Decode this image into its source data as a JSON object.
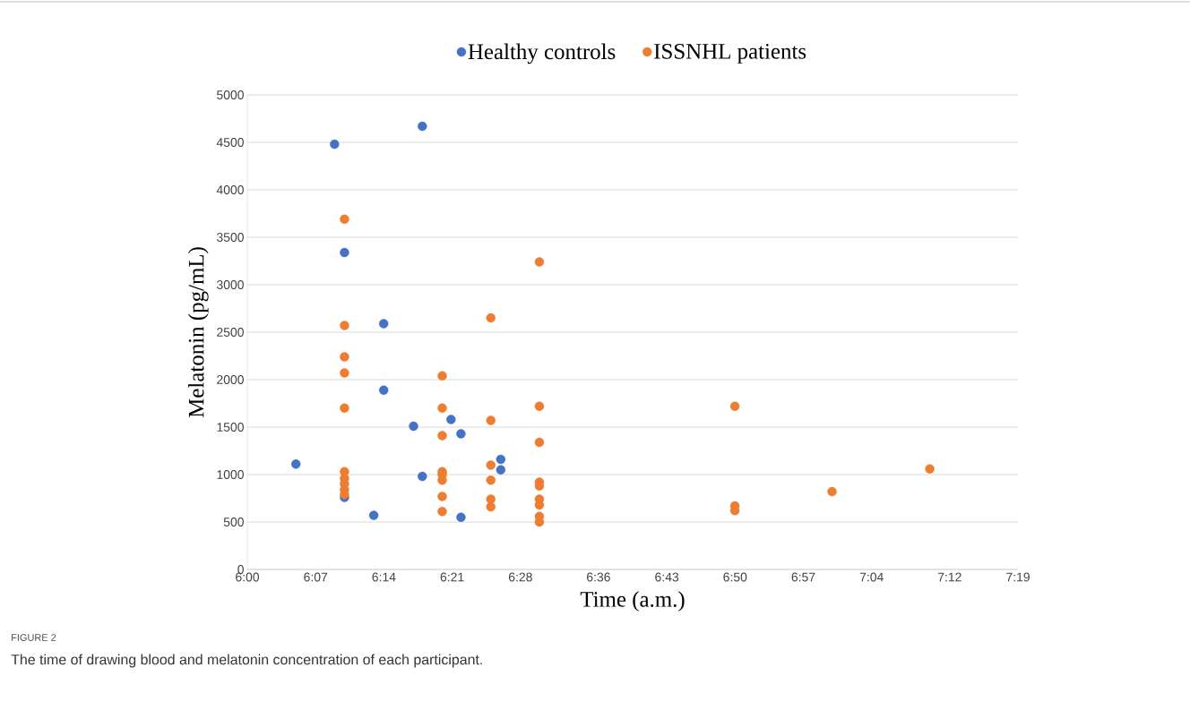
{
  "chart_data": {
    "type": "scatter",
    "xlabel": "Time (a.m.)",
    "ylabel": "Melatonin (pg/mL)",
    "annotations": [
      "FIGURE 2",
      "The time of drawing blood and melatonin concentration of each participant."
    ],
    "series": [
      {
        "name": "Healthy controls",
        "color": "#4472c4",
        "x": [
          6.083,
          6.149,
          6.166,
          6.166,
          6.216,
          6.233,
          6.233,
          6.284,
          6.299,
          6.299,
          6.348,
          6.365,
          6.365,
          6.433,
          6.433
        ],
        "values": [
          1110,
          4480,
          3340,
          760,
          570,
          2590,
          1890,
          1510,
          4670,
          980,
          1580,
          1430,
          550,
          1160,
          1050
        ]
      },
      {
        "name": "ISSNHL patients",
        "color": "#ed7d31",
        "x": [
          6.166,
          6.166,
          6.166,
          6.166,
          6.166,
          6.166,
          6.166,
          6.166,
          6.166,
          6.166,
          6.333,
          6.333,
          6.333,
          6.333,
          6.333,
          6.333,
          6.333,
          6.333,
          6.416,
          6.416,
          6.416,
          6.416,
          6.416,
          6.416,
          6.499,
          6.499,
          6.499,
          6.499,
          6.499,
          6.499,
          6.499,
          6.499,
          6.499,
          6.833,
          6.833,
          6.833,
          6.999,
          7.166
        ],
        "values": [
          3690,
          2570,
          2240,
          2070,
          1700,
          1030,
          960,
          900,
          840,
          790,
          2040,
          1700,
          1410,
          1030,
          1000,
          940,
          770,
          610,
          2650,
          1570,
          1100,
          940,
          740,
          660,
          3240,
          1720,
          1340,
          920,
          880,
          740,
          680,
          560,
          500,
          1720,
          670,
          620,
          820,
          1060
        ]
      }
    ],
    "xlim": [
      6.0,
      7.3167
    ],
    "ylim": [
      0,
      5000
    ],
    "xticks": [
      {
        "value": 6.0,
        "label": "6:00"
      },
      {
        "value": 6.1167,
        "label": "6:07"
      },
      {
        "value": 6.2333,
        "label": "6:14"
      },
      {
        "value": 6.35,
        "label": "6:21"
      },
      {
        "value": 6.4667,
        "label": "6:28"
      },
      {
        "value": 6.6,
        "label": "6:36"
      },
      {
        "value": 6.7167,
        "label": "6:43"
      },
      {
        "value": 6.8333,
        "label": "6:50"
      },
      {
        "value": 6.95,
        "label": "6:57"
      },
      {
        "value": 7.0667,
        "label": "7:04"
      },
      {
        "value": 7.2,
        "label": "7:12"
      },
      {
        "value": 7.3167,
        "label": "7:19"
      }
    ],
    "yticks": [
      0,
      500,
      1000,
      1500,
      2000,
      2500,
      3000,
      3500,
      4000,
      4500,
      5000
    ],
    "grid": "y",
    "legend": "top",
    "marker": "circle"
  }
}
